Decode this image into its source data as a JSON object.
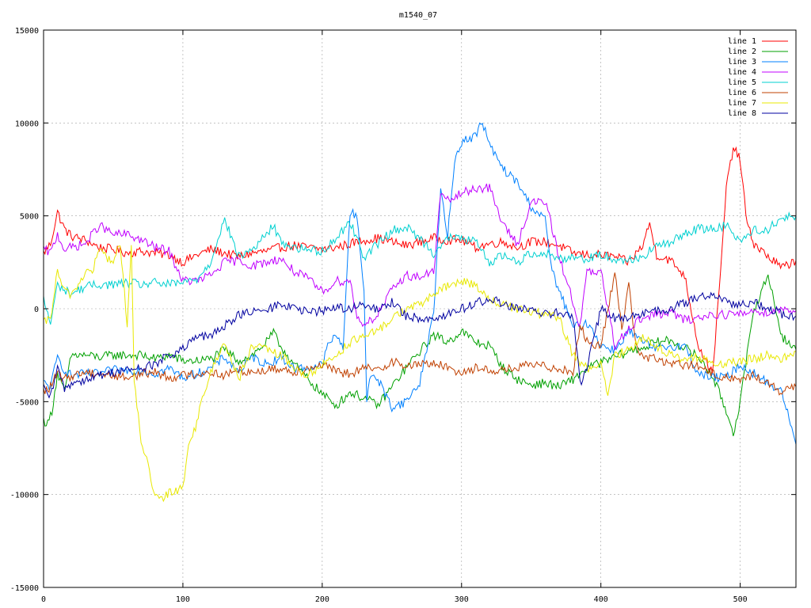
{
  "chart_data": {
    "type": "line",
    "title": "m1540_07",
    "xlabel": "",
    "ylabel": "",
    "xlim": [
      0,
      540
    ],
    "ylim": [
      -15000,
      15000
    ],
    "xticks": [
      0,
      100,
      200,
      300,
      400,
      500
    ],
    "yticks": [
      -15000,
      -10000,
      -5000,
      0,
      5000,
      10000,
      15000
    ],
    "grid": true,
    "legend_position": "top-right",
    "series": [
      {
        "name": "line 1",
        "color": "#ff0000",
        "x": [
          0,
          5,
          10,
          15,
          20,
          30,
          40,
          50,
          60,
          70,
          80,
          90,
          100,
          110,
          120,
          130,
          140,
          150,
          160,
          170,
          180,
          190,
          200,
          210,
          220,
          230,
          240,
          250,
          260,
          270,
          280,
          290,
          300,
          310,
          320,
          330,
          340,
          350,
          360,
          370,
          380,
          390,
          400,
          410,
          420,
          430,
          435,
          440,
          450,
          460,
          470,
          480,
          485,
          490,
          495,
          500,
          505,
          510,
          520,
          530,
          540
        ],
        "y": [
          3000,
          3500,
          5200,
          4300,
          3900,
          3700,
          3300,
          3200,
          3000,
          3100,
          3000,
          2900,
          2500,
          2900,
          3200,
          3000,
          2800,
          3000,
          3100,
          3300,
          3400,
          3300,
          3200,
          3300,
          3500,
          3700,
          3800,
          3600,
          3400,
          3600,
          3800,
          3700,
          3700,
          3300,
          3500,
          3600,
          3300,
          3600,
          3600,
          3400,
          3000,
          2900,
          2900,
          2800,
          2500,
          3400,
          4600,
          2900,
          2600,
          1800,
          -2000,
          -3500,
          1000,
          6500,
          8700,
          8000,
          4500,
          3500,
          2800,
          2200,
          2600
        ]
      },
      {
        "name": "line 2",
        "color": "#00a000",
        "x": [
          0,
          3,
          6,
          10,
          15,
          20,
          30,
          40,
          50,
          60,
          70,
          80,
          90,
          100,
          110,
          120,
          130,
          140,
          150,
          160,
          165,
          170,
          180,
          190,
          200,
          210,
          220,
          230,
          240,
          250,
          260,
          270,
          280,
          290,
          300,
          310,
          320,
          330,
          340,
          350,
          360,
          370,
          380,
          390,
          400,
          410,
          420,
          430,
          440,
          450,
          460,
          470,
          480,
          490,
          495,
          500,
          505,
          510,
          520,
          530,
          540
        ],
        "y": [
          -6000,
          -6200,
          -5500,
          -3500,
          -4500,
          -2500,
          -2500,
          -2600,
          -2500,
          -2500,
          -2500,
          -2700,
          -2500,
          -2800,
          -2800,
          -2700,
          -2200,
          -2800,
          -2500,
          -1800,
          -1300,
          -2000,
          -3000,
          -3800,
          -4600,
          -5200,
          -4500,
          -4800,
          -5200,
          -4200,
          -3200,
          -2300,
          -1400,
          -1800,
          -1200,
          -1800,
          -2000,
          -3200,
          -3800,
          -4100,
          -4000,
          -4200,
          -3800,
          -3200,
          -2900,
          -2600,
          -2300,
          -2100,
          -1800,
          -1700,
          -2100,
          -2600,
          -3600,
          -5500,
          -6700,
          -5000,
          -2500,
          0,
          1800,
          -1500,
          -2200
        ]
      },
      {
        "name": "line 3",
        "color": "#0080ff",
        "x": [
          0,
          5,
          10,
          15,
          20,
          30,
          40,
          50,
          60,
          70,
          80,
          90,
          100,
          110,
          120,
          130,
          140,
          150,
          160,
          170,
          180,
          190,
          200,
          205,
          210,
          215,
          220,
          225,
          230,
          232,
          235,
          240,
          250,
          260,
          270,
          280,
          285,
          290,
          295,
          300,
          310,
          315,
          320,
          330,
          340,
          350,
          360,
          365,
          370,
          380,
          390,
          395,
          400,
          410,
          420,
          430,
          440,
          450,
          460,
          470,
          480,
          490,
          500,
          510,
          520,
          530,
          540
        ],
        "y": [
          -4000,
          -4200,
          -2600,
          -3300,
          -3600,
          -3500,
          -3500,
          -3300,
          -3300,
          -3300,
          -3500,
          -3200,
          -3700,
          -3500,
          -3200,
          -2600,
          -3400,
          -2600,
          -3000,
          -2600,
          -3200,
          -3200,
          -3000,
          -1800,
          -1500,
          -2000,
          5200,
          5000,
          1000,
          -5000,
          -3500,
          -3800,
          -5300,
          -5000,
          -4000,
          -200,
          6400,
          3800,
          8000,
          9000,
          9300,
          10100,
          8800,
          7500,
          6800,
          5500,
          4800,
          2000,
          1000,
          -1000,
          -800,
          -1200,
          -2000,
          -2200,
          -1200,
          -1800,
          -2200,
          -2000,
          -2000,
          -3500,
          -3700,
          -3700,
          -3000,
          -3500,
          -4000,
          -4500,
          -7300
        ]
      },
      {
        "name": "line 4",
        "color": "#c000ff",
        "x": [
          0,
          5,
          10,
          15,
          20,
          30,
          40,
          50,
          60,
          70,
          80,
          90,
          100,
          110,
          120,
          130,
          140,
          150,
          160,
          170,
          180,
          190,
          200,
          210,
          220,
          225,
          230,
          235,
          240,
          250,
          260,
          270,
          280,
          285,
          290,
          300,
          310,
          320,
          330,
          340,
          350,
          360,
          370,
          380,
          385,
          390,
          395,
          400,
          410,
          420,
          430,
          440,
          450,
          460,
          470,
          480,
          490,
          500,
          510,
          520,
          530,
          540
        ],
        "y": [
          3200,
          3000,
          4000,
          3200,
          3300,
          3500,
          4500,
          4000,
          4000,
          3700,
          3300,
          3100,
          1500,
          1500,
          1800,
          2500,
          2600,
          2300,
          2500,
          2700,
          2000,
          1600,
          900,
          1500,
          1500,
          -500,
          -800,
          -600,
          -300,
          1000,
          1800,
          1700,
          2000,
          6200,
          5800,
          6200,
          6500,
          6500,
          4500,
          3500,
          5700,
          5800,
          2800,
          400,
          -1000,
          2000,
          1900,
          2000,
          -2000,
          -1000,
          -500,
          -300,
          -200,
          -600,
          -500,
          -300,
          -300,
          -300,
          -100,
          -200,
          0,
          -100
        ]
      },
      {
        "name": "line 5",
        "color": "#00d0d0",
        "x": [
          0,
          5,
          10,
          15,
          20,
          30,
          40,
          50,
          60,
          70,
          80,
          90,
          100,
          110,
          120,
          125,
          130,
          140,
          150,
          160,
          165,
          170,
          180,
          190,
          200,
          210,
          220,
          230,
          240,
          250,
          260,
          270,
          280,
          290,
          300,
          310,
          320,
          330,
          340,
          350,
          360,
          370,
          380,
          390,
          400,
          410,
          420,
          430,
          440,
          450,
          460,
          470,
          480,
          490,
          500,
          510,
          520,
          530,
          540
        ],
        "y": [
          500,
          -800,
          1300,
          1000,
          800,
          1200,
          1300,
          1300,
          1400,
          1300,
          1400,
          1300,
          1400,
          1600,
          2500,
          3800,
          4800,
          2800,
          3200,
          4000,
          4500,
          3600,
          3300,
          3200,
          3100,
          3800,
          4700,
          2800,
          3500,
          4200,
          4400,
          3800,
          3000,
          3800,
          3800,
          3600,
          2500,
          2900,
          2500,
          3000,
          3000,
          2700,
          2800,
          2700,
          2900,
          2700,
          2600,
          2800,
          3400,
          3500,
          4100,
          4300,
          4300,
          4500,
          3700,
          4200,
          4300,
          4900,
          5000
        ]
      },
      {
        "name": "line 6",
        "color": "#c04000",
        "x": [
          0,
          5,
          10,
          15,
          20,
          30,
          40,
          50,
          60,
          70,
          80,
          90,
          100,
          110,
          120,
          130,
          140,
          150,
          160,
          170,
          180,
          190,
          200,
          210,
          220,
          230,
          240,
          250,
          260,
          270,
          280,
          290,
          300,
          310,
          320,
          330,
          340,
          350,
          360,
          370,
          380,
          385,
          390,
          400,
          410,
          415,
          420,
          425,
          430,
          440,
          450,
          460,
          470,
          480,
          490,
          500,
          510,
          520,
          530,
          540
        ],
        "y": [
          -4500,
          -4200,
          -3500,
          -3800,
          -3600,
          -3400,
          -3500,
          -3600,
          -3700,
          -3500,
          -3400,
          -3700,
          -3600,
          -3500,
          -3400,
          -3600,
          -3300,
          -3400,
          -3300,
          -3200,
          -3400,
          -3200,
          -3000,
          -3400,
          -3500,
          -3200,
          -3300,
          -2800,
          -3100,
          -3000,
          -2900,
          -3200,
          -3400,
          -3200,
          -3300,
          -3300,
          -3200,
          -3000,
          -3100,
          -3200,
          -3400,
          -800,
          -1800,
          -2000,
          1900,
          -1000,
          1400,
          -2000,
          -2600,
          -2700,
          -3000,
          -3000,
          -3100,
          -3500,
          -3700,
          -3800,
          -3600,
          -4000,
          -4500,
          -4200
        ]
      },
      {
        "name": "line 7",
        "color": "#e8e800",
        "x": [
          0,
          5,
          10,
          15,
          20,
          25,
          30,
          35,
          40,
          45,
          50,
          55,
          60,
          63,
          65,
          70,
          75,
          80,
          85,
          90,
          95,
          100,
          105,
          110,
          115,
          120,
          125,
          130,
          140,
          150,
          160,
          170,
          180,
          190,
          200,
          210,
          220,
          230,
          240,
          250,
          260,
          270,
          280,
          290,
          300,
          310,
          320,
          330,
          340,
          350,
          360,
          370,
          380,
          390,
          400,
          405,
          410,
          420,
          430,
          440,
          450,
          460,
          470,
          480,
          490,
          500,
          510,
          520,
          530,
          540
        ],
        "y": [
          -800,
          -500,
          2000,
          900,
          800,
          1300,
          2000,
          2000,
          3200,
          2800,
          2500,
          3500,
          -800,
          3400,
          -4000,
          -7000,
          -8500,
          -10200,
          -10300,
          -9900,
          -9800,
          -9500,
          -7000,
          -6200,
          -4500,
          -3500,
          -2500,
          -1800,
          -3800,
          -2000,
          -2200,
          -2500,
          -3200,
          -3600,
          -3000,
          -2500,
          -1800,
          -1500,
          -1200,
          -500,
          0,
          200,
          800,
          1200,
          1500,
          1300,
          500,
          200,
          0,
          -200,
          -300,
          -500,
          -2500,
          -3200,
          -3000,
          -4800,
          -2500,
          -2200,
          -1500,
          -2000,
          -2500,
          -2800,
          -2600,
          -2900,
          -3000,
          -2800,
          -2700,
          -2500,
          -2700,
          -2300
        ]
      },
      {
        "name": "line 8",
        "color": "#0000a0",
        "x": [
          0,
          5,
          10,
          15,
          20,
          30,
          40,
          50,
          60,
          70,
          80,
          90,
          100,
          110,
          120,
          130,
          140,
          150,
          160,
          170,
          180,
          190,
          200,
          210,
          220,
          230,
          240,
          250,
          260,
          270,
          280,
          290,
          300,
          310,
          320,
          330,
          340,
          350,
          360,
          370,
          380,
          385,
          390,
          400,
          410,
          420,
          430,
          440,
          450,
          460,
          470,
          480,
          490,
          500,
          510,
          520,
          530,
          540
        ],
        "y": [
          -4300,
          -4800,
          -3200,
          -4300,
          -4000,
          -3800,
          -3600,
          -3400,
          -3300,
          -3200,
          -3000,
          -2500,
          -2200,
          -1500,
          -1500,
          -900,
          -300,
          -200,
          -100,
          300,
          0,
          -200,
          -100,
          100,
          0,
          200,
          -100,
          400,
          -400,
          -500,
          -500,
          -300,
          0,
          300,
          500,
          300,
          0,
          -100,
          -300,
          -200,
          -400,
          -4000,
          -3200,
          0,
          -500,
          -500,
          -300,
          -100,
          0,
          300,
          600,
          800,
          400,
          200,
          300,
          100,
          -300,
          -400
        ]
      }
    ]
  }
}
